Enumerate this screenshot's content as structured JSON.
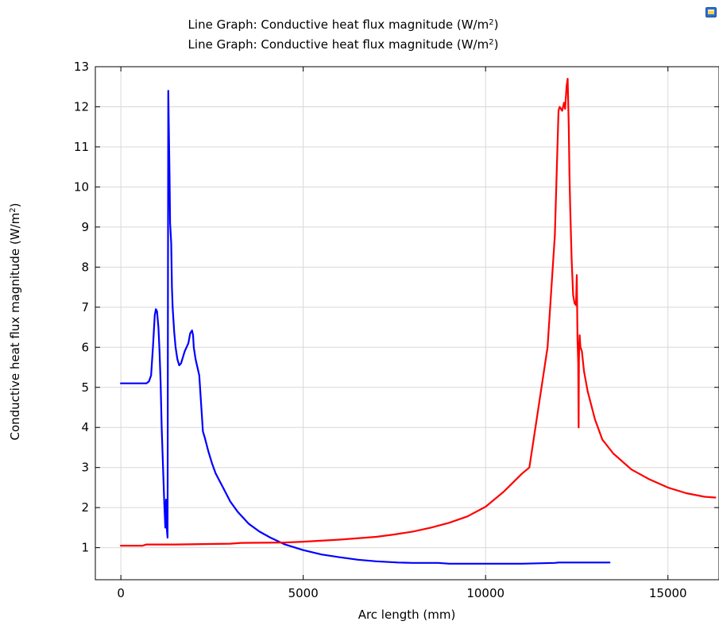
{
  "chart_data": {
    "type": "line",
    "title_lines": [
      {
        "prefix": "Line Graph: Conductive heat flux magnitude (W/m",
        "sup": "2",
        "suffix": ")"
      },
      {
        "prefix": "Line Graph: Conductive heat flux magnitude (W/m",
        "sup": "2",
        "suffix": ")"
      }
    ],
    "xlabel": "Arc length (mm)",
    "ylabel": {
      "prefix": "Conductive heat flux magnitude (W/m",
      "sup": "2",
      "suffix": ")"
    },
    "xlim": [
      -700,
      16400
    ],
    "ylim": [
      0.2,
      13
    ],
    "x_ticks": [
      0,
      5000,
      10000,
      15000
    ],
    "y_ticks": [
      1,
      2,
      3,
      4,
      5,
      6,
      7,
      8,
      9,
      10,
      11,
      12,
      13
    ],
    "grid": true,
    "series": [
      {
        "color": "#0000ff",
        "x": [
          0,
          700,
          770,
          830,
          880,
          930,
          960,
          990,
          1030,
          1060,
          1090,
          1120,
          1160,
          1190,
          1220,
          1240,
          1260,
          1280,
          1300,
          1320,
          1335,
          1350,
          1380,
          1400,
          1420,
          1460,
          1500,
          1550,
          1600,
          1650,
          1700,
          1750,
          1800,
          1850,
          1900,
          1950,
          1980,
          2000,
          2050,
          2100,
          2150,
          2200,
          2250,
          2300,
          2400,
          2500,
          2600,
          2800,
          3000,
          3200,
          3500,
          3800,
          4100,
          4500,
          5000,
          5500,
          6000,
          6500,
          7000,
          7600,
          8000,
          8700,
          9000,
          10000,
          11000,
          11900,
          12000,
          13400
        ],
        "y": [
          5.1,
          5.1,
          5.15,
          5.3,
          6.0,
          6.8,
          6.95,
          6.9,
          6.5,
          5.9,
          5.1,
          4.0,
          2.9,
          2.1,
          1.5,
          2.2,
          1.45,
          1.25,
          12.4,
          11.2,
          10.3,
          9.1,
          8.6,
          7.5,
          7.0,
          6.4,
          6.0,
          5.7,
          5.55,
          5.6,
          5.75,
          5.9,
          6.0,
          6.1,
          6.35,
          6.42,
          6.3,
          6.0,
          5.7,
          5.5,
          5.3,
          4.6,
          3.9,
          3.75,
          3.4,
          3.1,
          2.85,
          2.5,
          2.15,
          1.9,
          1.6,
          1.4,
          1.25,
          1.08,
          0.94,
          0.83,
          0.76,
          0.7,
          0.66,
          0.63,
          0.62,
          0.62,
          0.6,
          0.6,
          0.6,
          0.62,
          0.63,
          0.63
        ]
      },
      {
        "color": "#ff0000",
        "x": [
          0,
          600,
          700,
          1500,
          3000,
          3300,
          4500,
          5000,
          6000,
          7000,
          7500,
          8000,
          8500,
          9000,
          9500,
          10000,
          10500,
          11000,
          11200,
          11400,
          11700,
          11900,
          12000,
          12030,
          12100,
          12150,
          12180,
          12220,
          12250,
          12280,
          12300,
          12320,
          12360,
          12400,
          12440,
          12480,
          12500,
          12520,
          12540,
          12550,
          12560,
          12570,
          12580,
          12600,
          12640,
          12700,
          12800,
          13000,
          13200,
          13500,
          14000,
          14500,
          15000,
          15500,
          16000,
          16300
        ],
        "y": [
          1.05,
          1.05,
          1.08,
          1.08,
          1.1,
          1.12,
          1.13,
          1.15,
          1.2,
          1.27,
          1.33,
          1.4,
          1.5,
          1.62,
          1.78,
          2.02,
          2.4,
          2.85,
          3.0,
          4.2,
          6.0,
          8.8,
          11.9,
          12.0,
          11.9,
          12.1,
          11.95,
          12.5,
          12.7,
          11.5,
          10.3,
          9.5,
          8.2,
          7.3,
          7.1,
          7.05,
          7.8,
          6.2,
          5.6,
          4.0,
          5.7,
          6.1,
          6.3,
          6.0,
          5.9,
          5.4,
          4.9,
          4.2,
          3.7,
          3.35,
          2.95,
          2.7,
          2.5,
          2.36,
          2.27,
          2.25
        ]
      }
    ]
  },
  "ui": {
    "corner_icon": "image-export-icon"
  }
}
